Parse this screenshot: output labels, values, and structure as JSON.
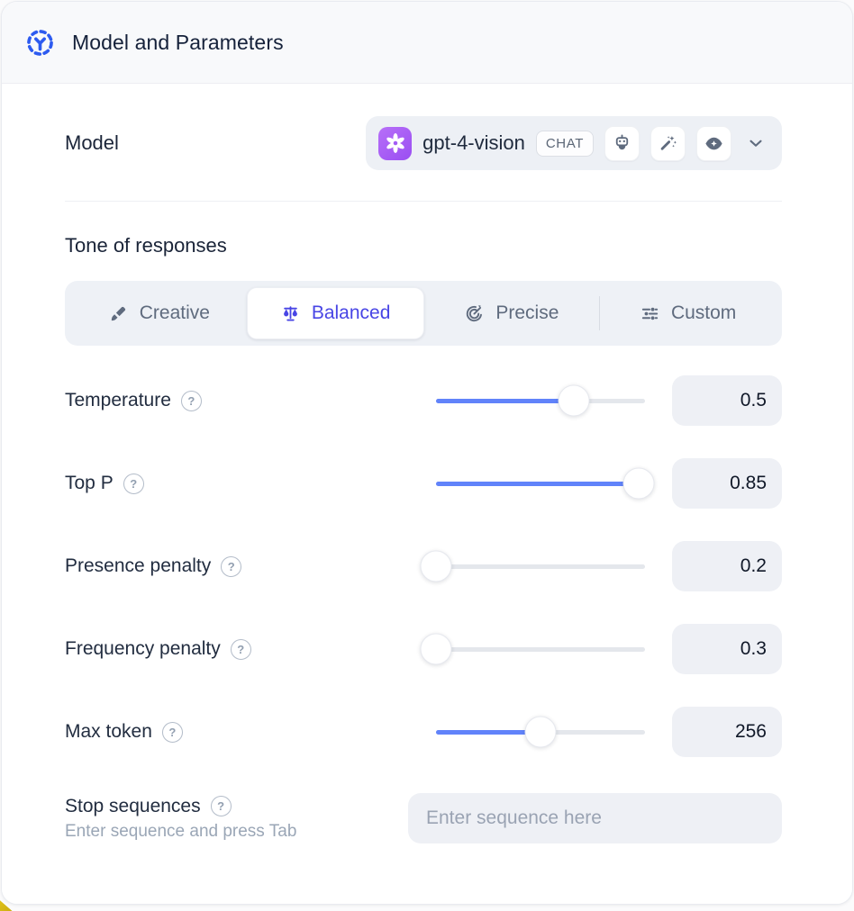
{
  "header": {
    "title": "Model and Parameters"
  },
  "model_section": {
    "label": "Model",
    "selector": {
      "name": "gpt-4-vision",
      "type_badge": "CHAT",
      "capabilities": [
        "assistant-robot",
        "magic-wand",
        "vision-eye"
      ]
    }
  },
  "tone_section": {
    "heading": "Tone of responses",
    "options": [
      {
        "label": "Creative",
        "icon": "paintbrush-icon",
        "selected": false
      },
      {
        "label": "Balanced",
        "icon": "balance-scale-icon",
        "selected": true
      },
      {
        "label": "Precise",
        "icon": "target-icon",
        "selected": false
      },
      {
        "label": "Custom",
        "icon": "sliders-icon",
        "selected": false
      }
    ]
  },
  "parameters": [
    {
      "label": "Temperature",
      "value": "0.5",
      "fill_pct": 66
    },
    {
      "label": "Top P",
      "value": "0.85",
      "fill_pct": 97
    },
    {
      "label": "Presence penalty",
      "value": "0.2",
      "fill_pct": 0
    },
    {
      "label": "Frequency penalty",
      "value": "0.3",
      "fill_pct": 0
    },
    {
      "label": "Max token",
      "value": "256",
      "fill_pct": 50
    }
  ],
  "stop_sequences": {
    "label": "Stop sequences",
    "hint": "Enter sequence and press Tab",
    "placeholder": "Enter sequence here"
  },
  "colors": {
    "accent_blue": "#2d5bf0",
    "selected_indigo": "#4845e5",
    "slider_fill": "#6183fa",
    "logo_purple": "#a35cf4"
  }
}
